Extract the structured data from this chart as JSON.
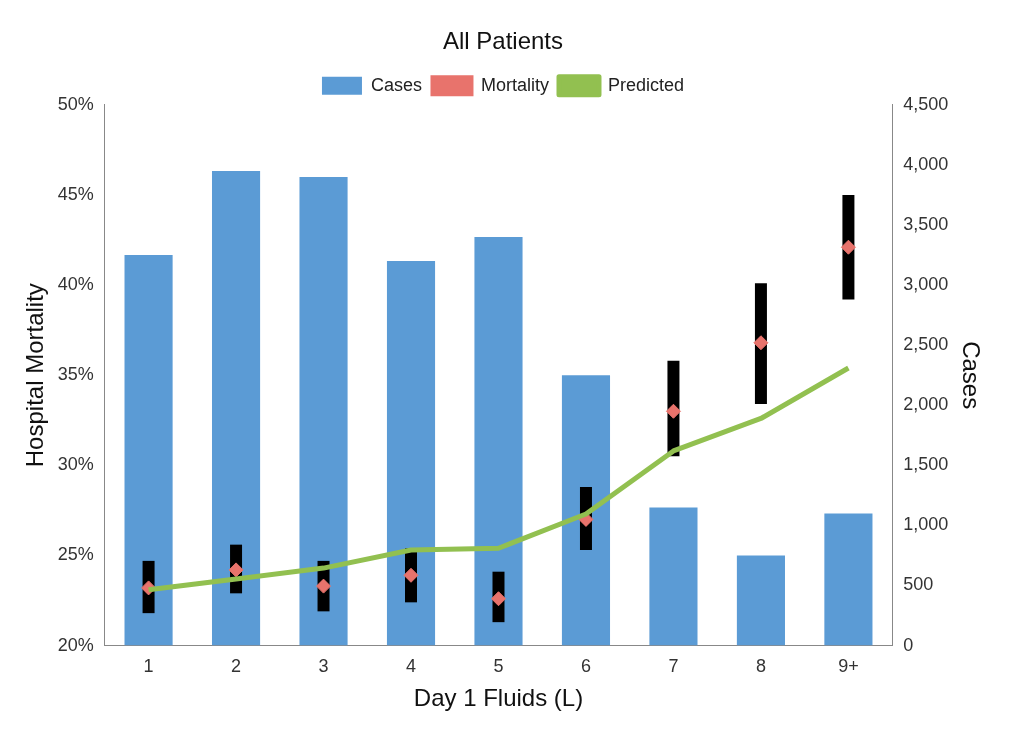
{
  "chart_data": {
    "type": "bar",
    "title": "All Patients",
    "xlabel": "Day 1 Fluids (L)",
    "ylabel": "Hospital Mortality",
    "y2label": "Cases",
    "categories": [
      "1",
      "2",
      "3",
      "4",
      "5",
      "6",
      "7",
      "8",
      "9+"
    ],
    "series": [
      {
        "name": "Cases",
        "axis": "y2",
        "color": "#5b9bd5",
        "values": [
          3250,
          3950,
          3900,
          3200,
          3400,
          2250,
          1150,
          750,
          1100
        ]
      },
      {
        "name": "Mortality",
        "type": "scatter",
        "marker": "diamond",
        "color": "#e8736c",
        "values": [
          23.2,
          24.2,
          23.3,
          23.9,
          22.6,
          27.0,
          33.0,
          36.8,
          42.1
        ],
        "errors": [
          [
            21.8,
            24.7
          ],
          [
            22.9,
            25.6
          ],
          [
            21.9,
            24.7
          ],
          [
            22.4,
            25.4
          ],
          [
            21.3,
            24.1
          ],
          [
            25.3,
            28.8
          ],
          [
            30.5,
            35.8
          ],
          [
            33.4,
            40.1
          ],
          [
            39.2,
            45.0
          ]
        ]
      },
      {
        "name": "Predicted",
        "type": "line",
        "marker": "none",
        "color": "#92c050",
        "values": [
          23.1,
          23.7,
          24.3,
          25.3,
          25.4,
          27.3,
          30.8,
          32.6,
          35.4
        ]
      }
    ],
    "ylim": [
      20,
      50
    ],
    "yticks": [
      {
        "value": 20,
        "label": "20%"
      },
      {
        "value": 25,
        "label": "25%"
      },
      {
        "value": 30,
        "label": "30%"
      },
      {
        "value": 35,
        "label": "35%"
      },
      {
        "value": 40,
        "label": "40%"
      },
      {
        "value": 45,
        "label": "45%"
      },
      {
        "value": 50,
        "label": "50%"
      }
    ],
    "y2lim": [
      0,
      4500
    ],
    "y2ticks": [
      0,
      500,
      {
        "value": 1000,
        "label": "1,000"
      },
      {
        "value": 1500,
        "label": "1,500"
      },
      {
        "value": 2000,
        "label": "2,000"
      },
      {
        "value": 2500,
        "label": "2,500"
      },
      {
        "value": 3000,
        "label": "3,000"
      },
      {
        "value": 3500,
        "label": "3,500"
      },
      {
        "value": 4000,
        "label": "4,000"
      },
      {
        "value": 4500,
        "label": "4,500"
      }
    ],
    "grid": false,
    "legend": "top"
  }
}
